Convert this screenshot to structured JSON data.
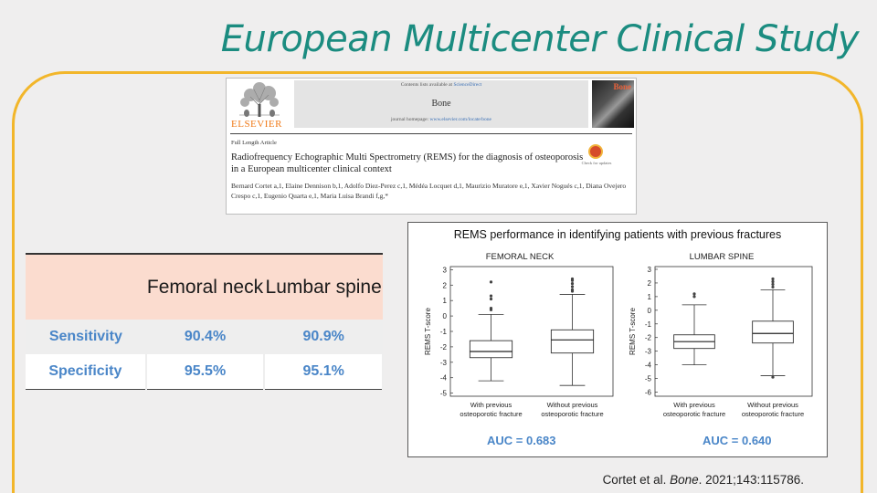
{
  "slide": {
    "title": "European Multicenter Clinical Study",
    "citation_pre": "Cortet et al. ",
    "citation_journal": "Bone",
    "citation_post": ". 2021;143:115786."
  },
  "paper": {
    "publisher": "ELSEVIER",
    "contents_pre": "Contents lists available at ",
    "contents_link": "ScienceDirect",
    "journal": "Bone",
    "homepage_pre": "journal homepage: ",
    "homepage_url": "www.elsevier.com/locate/bone",
    "cover_word": "Bone",
    "article_type": "Full Length Article",
    "title": "Radiofrequency Echographic Multi Spectrometry (REMS) for the diagnosis of osteoporosis in a European multicenter clinical context",
    "check_label": "Check for updates",
    "authors": "Bernard Cortet a,1, Elaine Dennison b,1, Adolfo Diez-Perez c,1, Médéa Locquet d,1, Maurizio Muratore e,1, Xavier Nogués c,1, Diana Ovejero Crespo c,1, Eugenio Quarta e,1, Maria Luisa Brandi f,g,*"
  },
  "table": {
    "columns": [
      "",
      "Femoral neck",
      "Lumbar spine"
    ],
    "rows": [
      {
        "label": "Sensitivity",
        "femoral": "90.4%",
        "lumbar": "90.9%"
      },
      {
        "label": "Specificity",
        "femoral": "95.5%",
        "lumbar": "95.1%"
      }
    ]
  },
  "figure": {
    "title": "REMS performance in identifying patients with previous fractures",
    "panels": [
      {
        "label": "FEMORAL NECK",
        "auc": "AUC = 0.683"
      },
      {
        "label": "LUMBAR SPINE",
        "auc": "AUC = 0.640"
      }
    ]
  },
  "chart_data": [
    {
      "type": "box",
      "title": "FEMORAL NECK",
      "ylabel": "REMS T-score",
      "ylim": [
        -5.2,
        3.2
      ],
      "yticks": [
        3,
        2,
        1,
        0,
        -1,
        -2,
        -3,
        -4,
        -5
      ],
      "categories": [
        "With previous osteoporotic fracture",
        "Without previous osteoporotic fracture"
      ],
      "boxes": [
        {
          "whisker_low": -4.2,
          "q1": -2.7,
          "median": -2.3,
          "q3": -1.6,
          "whisker_high": 0.1,
          "outliers": [
            0.4,
            0.5,
            1.1,
            1.3,
            2.2
          ]
        },
        {
          "whisker_low": -4.5,
          "q1": -2.4,
          "median": -1.55,
          "q3": -0.9,
          "whisker_high": 1.4,
          "outliers": [
            1.6,
            1.7,
            1.9,
            2.1,
            2.3,
            2.4
          ]
        }
      ]
    },
    {
      "type": "box",
      "title": "LUMBAR SPINE",
      "ylabel": "REMS T-score",
      "ylim": [
        -6.3,
        3.2
      ],
      "yticks": [
        3,
        2,
        1,
        0,
        -1,
        -2,
        -3,
        -4,
        -5,
        -6
      ],
      "categories": [
        "With previous osteoporotic fracture",
        "Without previous osteoporotic fracture"
      ],
      "boxes": [
        {
          "whisker_low": -4.0,
          "q1": -2.8,
          "median": -2.3,
          "q3": -1.8,
          "whisker_high": 0.4,
          "outliers": [
            1.0,
            1.2
          ]
        },
        {
          "whisker_low": -4.8,
          "q1": -2.4,
          "median": -1.7,
          "q3": -0.8,
          "whisker_high": 1.5,
          "outliers": [
            1.7,
            1.9,
            2.1,
            2.3,
            -4.9
          ]
        }
      ]
    }
  ]
}
